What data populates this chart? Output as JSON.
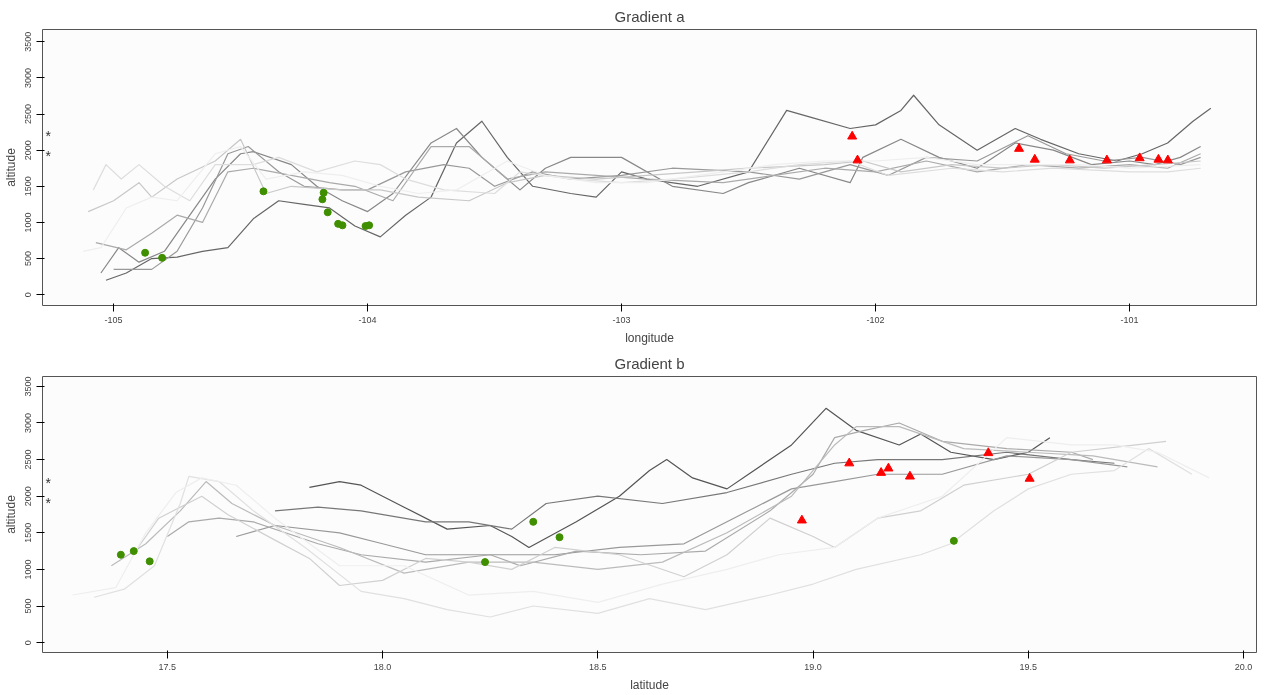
{
  "chart_data": [
    {
      "type": "line",
      "title": "Gradient a",
      "xlabel": "longitude",
      "ylabel": "altitude",
      "xlim": [
        -105.28,
        -100.5
      ],
      "ylim": [
        -150,
        3670
      ],
      "xticks": [
        -105,
        -104,
        -103,
        -102,
        -101
      ],
      "yticks": [
        0,
        500,
        1000,
        1500,
        2000,
        2500,
        3000,
        3500
      ],
      "grid": false,
      "annotations": [
        "*",
        "*"
      ],
      "series": [
        {
          "color": "#666666",
          "x": [
            -105.03,
            -104.95,
            -104.85,
            -104.75,
            -104.65,
            -104.55,
            -104.45,
            -104.35,
            -104.25,
            -104.15,
            -104.05,
            -103.95,
            -103.85,
            -103.75,
            -103.65,
            -103.55,
            -103.45,
            -103.35,
            -103.2,
            -103.1,
            -103.0,
            -102.9,
            -102.7,
            -102.5,
            -102.35,
            -102.25,
            -102.1,
            -102.0,
            -101.9,
            -101.85,
            -101.75,
            -101.6,
            -101.45,
            -101.35,
            -101.2,
            -101.05,
            -100.95,
            -100.85,
            -100.75,
            -100.68
          ],
          "values": [
            200,
            300,
            500,
            520,
            600,
            650,
            1050,
            1300,
            1250,
            1200,
            950,
            800,
            1100,
            1350,
            2100,
            2400,
            1900,
            1500,
            1400,
            1350,
            1700,
            1600,
            1500,
            1700,
            2550,
            2450,
            2300,
            2350,
            2550,
            2760,
            2350,
            2000,
            2300,
            2150,
            1950,
            1850,
            1950,
            2100,
            2400,
            2580
          ]
        },
        {
          "color": "#888888",
          "x": [
            -105.05,
            -104.98,
            -104.9,
            -104.8,
            -104.7,
            -104.6,
            -104.5,
            -104.45,
            -104.3,
            -104.2,
            -104.1,
            -104.0,
            -103.9,
            -103.75,
            -103.65,
            -103.55,
            -103.4,
            -103.3,
            -103.2,
            -103.0,
            -102.8,
            -102.6,
            -102.5,
            -102.3,
            -102.1,
            -102.05,
            -101.9,
            -101.75,
            -101.6,
            -101.45,
            -101.3,
            -101.15,
            -101.0,
            -100.9,
            -100.8,
            -100.72
          ],
          "values": [
            300,
            650,
            450,
            600,
            1100,
            1600,
            1950,
            1980,
            1800,
            1500,
            1300,
            1150,
            1400,
            2100,
            2300,
            1900,
            1450,
            1750,
            1900,
            1900,
            1500,
            1400,
            1550,
            1750,
            1550,
            1900,
            2150,
            1900,
            1750,
            2100,
            2000,
            1800,
            1850,
            1800,
            1900,
            2050
          ]
        },
        {
          "color": "#999999",
          "x": [
            -105.0,
            -104.85,
            -104.75,
            -104.65,
            -104.55,
            -104.47,
            -104.35,
            -104.25,
            -104.1,
            -104.0,
            -103.85,
            -103.7,
            -103.6,
            -103.5,
            -103.35,
            -103.2,
            -103.0,
            -102.8,
            -102.5,
            -102.3,
            -102.1,
            -101.95,
            -101.8,
            -101.6,
            -101.4,
            -101.25,
            -101.1,
            -100.95,
            -100.8,
            -100.72
          ],
          "values": [
            350,
            350,
            600,
            1200,
            1950,
            2050,
            1700,
            1500,
            1450,
            1450,
            1700,
            1800,
            1750,
            1500,
            1700,
            1600,
            1650,
            1750,
            1700,
            1600,
            1800,
            1650,
            1900,
            1850,
            2200,
            1950,
            1850,
            1900,
            1800,
            1900
          ]
        },
        {
          "color": "#aaaaaa",
          "x": [
            -105.07,
            -104.95,
            -104.85,
            -104.75,
            -104.65,
            -104.55,
            -104.45,
            -104.3,
            -104.15,
            -104.05,
            -103.9,
            -103.75,
            -103.6,
            -103.45,
            -103.3,
            -103.1,
            -102.9,
            -102.6,
            -102.4,
            -102.2,
            -102.0,
            -101.8,
            -101.6,
            -101.4,
            -101.2,
            -101.0,
            -100.85,
            -100.72
          ],
          "values": [
            720,
            620,
            850,
            1100,
            1000,
            1700,
            1750,
            1650,
            1550,
            1500,
            1300,
            2050,
            2050,
            1600,
            1700,
            1650,
            1600,
            1550,
            1650,
            1750,
            1700,
            1850,
            1700,
            1800,
            1750,
            1800,
            1750,
            1950
          ]
        },
        {
          "color": "#c8c8c8",
          "x": [
            -105.1,
            -105.0,
            -104.9,
            -104.85,
            -104.75,
            -104.6,
            -104.5,
            -104.4,
            -104.3,
            -104.1,
            -103.95,
            -103.8,
            -103.6,
            -103.45,
            -103.3,
            -103.1,
            -102.9,
            -102.7,
            -102.5,
            -102.2,
            -102.05,
            -101.9,
            -101.7,
            -101.5,
            -101.3,
            -101.1,
            -100.9,
            -100.72
          ],
          "values": [
            1150,
            1300,
            1550,
            1350,
            1600,
            1850,
            2150,
            1400,
            1500,
            1450,
            1450,
            1350,
            1300,
            1550,
            1650,
            1600,
            1650,
            1700,
            1750,
            1800,
            1850,
            1700,
            1800,
            1750,
            1800,
            1750,
            1800,
            1850
          ]
        },
        {
          "color": "#dddddd",
          "x": [
            -105.08,
            -105.03,
            -104.97,
            -104.9,
            -104.8,
            -104.7,
            -104.6,
            -104.45,
            -104.35,
            -104.2,
            -104.05,
            -103.95,
            -103.85,
            -103.7,
            -103.5,
            -103.4,
            -103.2,
            -103.0,
            -102.8,
            -102.5,
            -102.3,
            -102.1,
            -101.95,
            -101.7,
            -101.5,
            -101.3,
            -101.0,
            -100.85,
            -100.72
          ],
          "values": [
            1450,
            1800,
            1600,
            1800,
            1500,
            1300,
            1800,
            1800,
            1900,
            1700,
            1850,
            1800,
            1600,
            1450,
            1400,
            1700,
            1600,
            1550,
            1600,
            1700,
            1800,
            1850,
            1650,
            1750,
            1700,
            1750,
            1700,
            1700,
            1750
          ]
        },
        {
          "color": "#eeeeee",
          "x": [
            -105.12,
            -105.05,
            -104.95,
            -104.85,
            -104.75,
            -104.6,
            -104.5,
            -104.4,
            -104.25,
            -104.1,
            -103.95,
            -103.8,
            -103.65,
            -103.45,
            -103.3,
            -103.1,
            -102.9,
            -102.6,
            -102.4,
            -102.2,
            -102.0,
            -101.8,
            -101.6,
            -101.4,
            -101.2,
            -101.0,
            -100.72
          ],
          "values": [
            600,
            650,
            1200,
            1350,
            1300,
            1950,
            2050,
            1600,
            1700,
            1650,
            1500,
            1400,
            1450,
            1850,
            1650,
            1550,
            1550,
            1700,
            1800,
            1850,
            1850,
            1900,
            1800,
            1800,
            1800,
            1750,
            1800
          ]
        },
        {
          "type": "scatter",
          "marker": "circle",
          "color": "#3f8f00",
          "x": [
            -104.876,
            -104.809,
            -104.41,
            -104.173,
            -104.178,
            -104.157,
            -104.116,
            -104.099,
            -104.008,
            -103.994
          ],
          "values": [
            580,
            510,
            1430,
            1410,
            1320,
            1140,
            980,
            960,
            950,
            960
          ]
        },
        {
          "type": "scatter",
          "marker": "triangle",
          "color": "#ff0000",
          "x": [
            -102.092,
            -102.071,
            -101.435,
            -101.373,
            -101.235,
            -101.089,
            -100.96,
            -100.886,
            -100.849
          ],
          "values": [
            2190,
            1860,
            2020,
            1870,
            1860,
            1860,
            1890,
            1870,
            1860
          ]
        }
      ]
    },
    {
      "type": "line",
      "title": "Gradient b",
      "xlabel": "latitude",
      "ylabel": "altitude",
      "xlim": [
        17.21,
        20.03
      ],
      "ylim": [
        -135,
        3635
      ],
      "xticks": [
        {
          "value": 17.5,
          "label": "17.5"
        },
        {
          "value": 18,
          "label": "18.0"
        },
        {
          "value": 18.5,
          "label": "18.5"
        },
        {
          "value": 19,
          "label": "19.0"
        },
        {
          "value": 19.5,
          "label": "19.5"
        },
        {
          "value": 20,
          "label": "20.0"
        }
      ],
      "yticks": [
        0,
        500,
        1000,
        1500,
        2000,
        2500,
        3000,
        3500
      ],
      "grid": false,
      "annotations": [
        "*",
        "*"
      ],
      "series": [
        {
          "color": "#555555",
          "x": [
            17.83,
            17.9,
            17.95,
            18.05,
            18.15,
            18.25,
            18.3,
            18.34,
            18.45,
            18.55,
            18.62,
            18.66,
            18.72,
            18.8,
            18.85,
            18.95,
            19.03,
            19.1,
            19.2,
            19.25,
            19.32,
            19.42,
            19.5,
            19.55
          ],
          "values": [
            2120,
            2200,
            2150,
            1850,
            1550,
            1600,
            1450,
            1300,
            1650,
            2000,
            2350,
            2500,
            2250,
            2100,
            2300,
            2700,
            3200,
            2900,
            2700,
            2850,
            2600,
            2500,
            2600,
            2800
          ]
        },
        {
          "color": "#777777",
          "x": [
            17.75,
            17.85,
            17.95,
            18.1,
            18.2,
            18.3,
            18.38,
            18.5,
            18.65,
            18.8,
            18.95,
            19.05,
            19.15,
            19.3,
            19.45,
            19.6,
            19.7
          ],
          "values": [
            1800,
            1850,
            1800,
            1650,
            1650,
            1550,
            1900,
            2000,
            1900,
            2050,
            2300,
            2450,
            2500,
            2500,
            2600,
            2500,
            2450
          ]
        },
        {
          "color": "#999999",
          "x": [
            17.66,
            17.75,
            17.9,
            18.0,
            18.1,
            18.25,
            18.4,
            18.55,
            18.7,
            18.85,
            18.95,
            19.05,
            19.15,
            19.3,
            19.45,
            19.6,
            19.73
          ],
          "values": [
            1450,
            1600,
            1500,
            1350,
            1200,
            1200,
            1200,
            1300,
            1350,
            1800,
            2100,
            2200,
            2300,
            2300,
            2550,
            2500,
            2400
          ]
        },
        {
          "color": "#aaaaaa",
          "x": [
            17.5,
            17.55,
            17.62,
            17.7,
            17.85,
            17.95,
            18.1,
            18.25,
            18.32,
            18.45,
            18.6,
            18.75,
            18.9,
            19.0,
            19.05,
            19.12,
            19.2,
            19.3,
            19.45,
            19.6,
            19.65
          ],
          "values": [
            1450,
            1650,
            1700,
            1650,
            1350,
            1200,
            1100,
            1200,
            1050,
            1250,
            1200,
            1250,
            1800,
            2300,
            2800,
            2900,
            3000,
            2750,
            2650,
            2600,
            2500
          ]
        },
        {
          "color": "#bbbbbb",
          "x": [
            17.37,
            17.45,
            17.53,
            17.59,
            17.65,
            17.75,
            17.9,
            18.05,
            18.2,
            18.35,
            18.5,
            18.65,
            18.8,
            18.95,
            19.05,
            19.1,
            19.2,
            19.35,
            19.5,
            19.65,
            19.8
          ],
          "values": [
            1050,
            1350,
            1800,
            2200,
            1900,
            1600,
            1300,
            950,
            1100,
            1100,
            1000,
            1100,
            1500,
            2000,
            2700,
            2950,
            2950,
            2650,
            2600,
            2550,
            2400
          ]
        },
        {
          "color": "#d0d0d0",
          "x": [
            17.42,
            17.48,
            17.58,
            17.64,
            17.75,
            17.83,
            17.9,
            18.0,
            18.1,
            18.2,
            18.3,
            18.4,
            18.55,
            18.7,
            18.8,
            18.9,
            19.0,
            19.05,
            19.15,
            19.25,
            19.35,
            19.5,
            19.6,
            19.75,
            19.82
          ],
          "values": [
            1200,
            1700,
            2000,
            1750,
            1400,
            1150,
            780,
            850,
            1150,
            1100,
            1000,
            1300,
            1200,
            900,
            1200,
            1700,
            1450,
            1300,
            1700,
            1800,
            2150,
            2300,
            2600,
            2700,
            2750
          ]
        },
        {
          "color": "#e0e0e0",
          "x": [
            17.33,
            17.4,
            17.47,
            17.53,
            17.55,
            17.62,
            17.7,
            17.82,
            17.95,
            18.05,
            18.15,
            18.25,
            18.35,
            18.5,
            18.62,
            18.75,
            18.9,
            19.0,
            19.1,
            19.25,
            19.32,
            19.42,
            19.5,
            19.6,
            19.7,
            19.78,
            19.88
          ],
          "values": [
            620,
            730,
            1050,
            1900,
            2270,
            2200,
            1800,
            1300,
            700,
            600,
            450,
            350,
            500,
            400,
            600,
            450,
            650,
            800,
            1000,
            1200,
            1350,
            1800,
            2100,
            2300,
            2350,
            2650,
            2300
          ]
        },
        {
          "color": "#eeeeee",
          "x": [
            17.28,
            17.38,
            17.45,
            17.52,
            17.58,
            17.66,
            17.75,
            17.9,
            18.05,
            18.2,
            18.35,
            18.5,
            18.65,
            18.8,
            18.92,
            19.05,
            19.15,
            19.3,
            19.45,
            19.6,
            19.7,
            19.8,
            19.92
          ],
          "values": [
            650,
            750,
            1500,
            2050,
            2250,
            2150,
            1700,
            1050,
            1050,
            650,
            700,
            550,
            800,
            1000,
            1200,
            1300,
            1700,
            2000,
            2800,
            2700,
            2700,
            2600,
            2250
          ]
        },
        {
          "type": "scatter",
          "marker": "circle",
          "color": "#3f8f00",
          "x": [
            17.392,
            17.422,
            17.459,
            18.238,
            18.35,
            18.411,
            19.327
          ],
          "values": [
            1200,
            1250,
            1110,
            1100,
            1650,
            1440,
            1390
          ]
        },
        {
          "type": "scatter",
          "marker": "triangle",
          "color": "#ff0000",
          "x": [
            18.974,
            19.084,
            19.158,
            19.175,
            19.225,
            19.407,
            19.503
          ],
          "values": [
            1670,
            2450,
            2320,
            2380,
            2270,
            2590,
            2240
          ]
        }
      ]
    }
  ]
}
